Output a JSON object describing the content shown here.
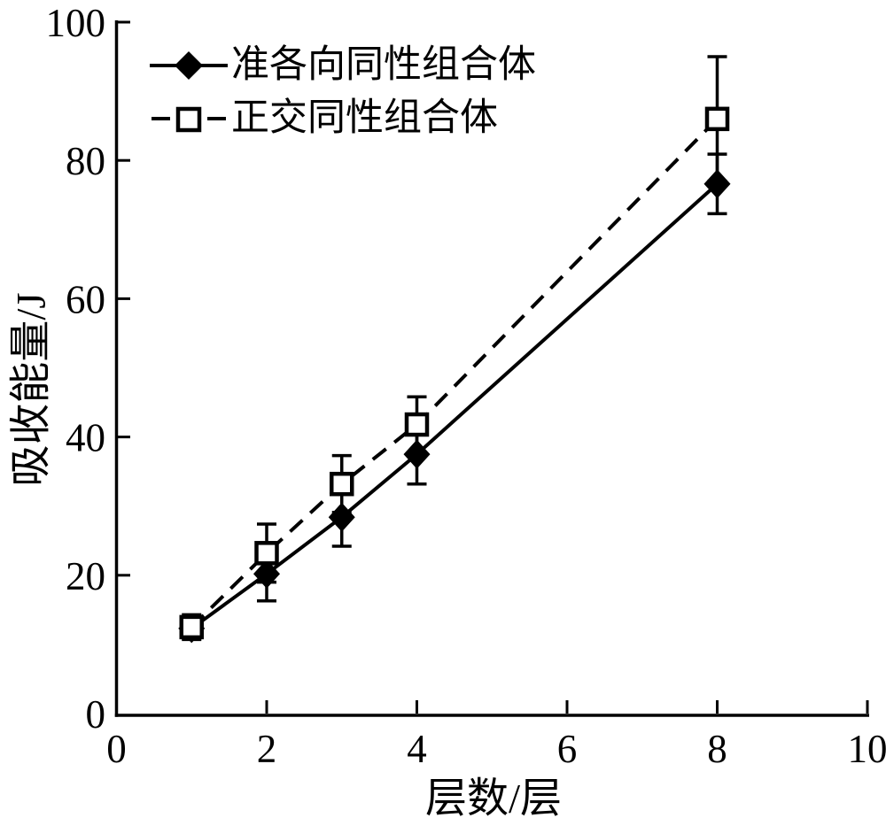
{
  "chart_data": {
    "type": "line",
    "title": "",
    "xlabel": "层数/层",
    "ylabel": "吸收能量/J",
    "xlim": [
      0,
      10
    ],
    "ylim": [
      0,
      100
    ],
    "x_ticks": [
      0,
      2,
      4,
      6,
      8,
      10
    ],
    "y_ticks": [
      0,
      20,
      40,
      60,
      80,
      100
    ],
    "grid": false,
    "legend_position": "top-left",
    "x": [
      1,
      2,
      3,
      4,
      8
    ],
    "series": [
      {
        "name": "准各向同性组合体",
        "marker": "filled-diamond",
        "line": "solid",
        "color": "#000000",
        "values": [
          12.3,
          20.2,
          28.4,
          37.5,
          76.6
        ],
        "yerr": [
          1.4,
          3.9,
          4.2,
          4.3,
          4.3
        ]
      },
      {
        "name": "正交同性组合体",
        "marker": "open-square",
        "line": "dashed",
        "color": "#000000",
        "values": [
          12.5,
          23.2,
          33.2,
          41.8,
          86.0
        ],
        "yerr": [
          1.8,
          4.2,
          4.1,
          4.0,
          9.0
        ]
      }
    ]
  },
  "colors": {
    "foreground": "#000000",
    "background": "#ffffff"
  }
}
